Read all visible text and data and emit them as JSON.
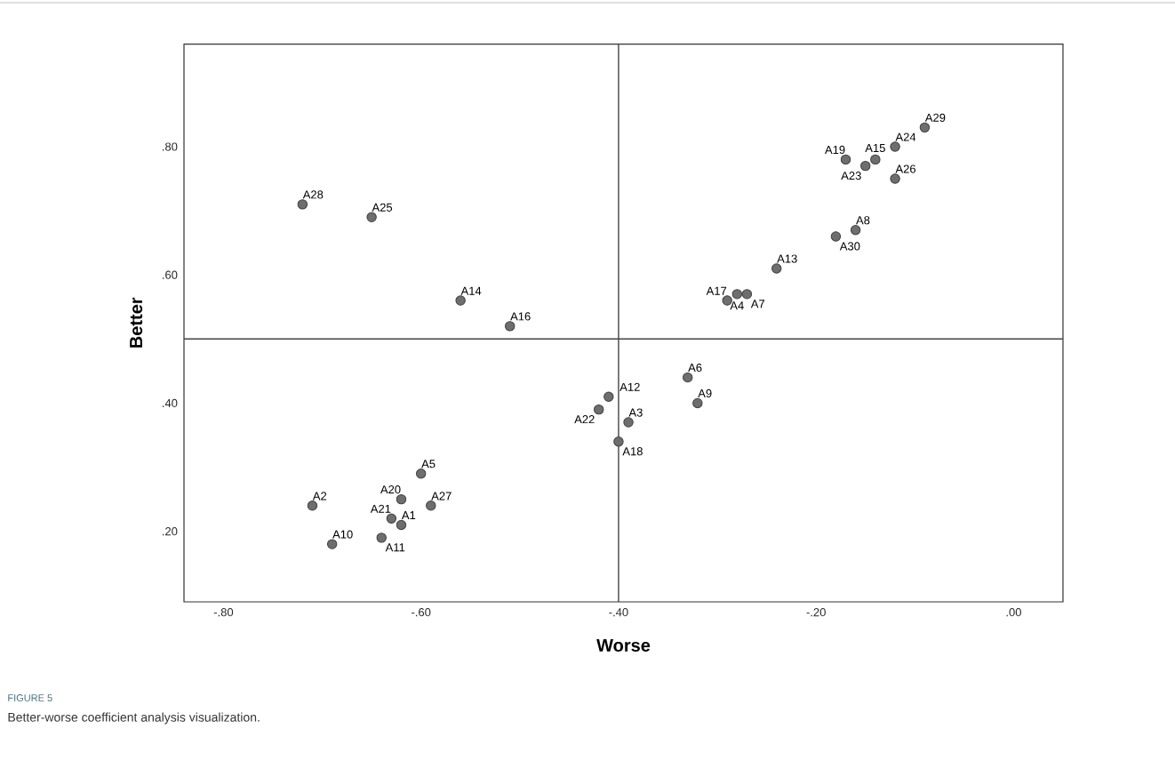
{
  "chart_data": {
    "type": "scatter",
    "xlabel": "Worse",
    "ylabel": "Better",
    "x": [
      -0.62,
      -0.71,
      -0.39,
      -0.28,
      -0.6,
      -0.33,
      -0.27,
      -0.16,
      -0.32,
      -0.69,
      -0.64,
      -0.41,
      -0.24,
      -0.56,
      -0.14,
      -0.51,
      -0.29,
      -0.4,
      -0.17,
      -0.62,
      -0.63,
      -0.42,
      -0.15,
      -0.12,
      -0.65,
      -0.12,
      -0.59,
      -0.72,
      -0.09,
      -0.18
    ],
    "series": [
      {
        "color": "#6e6e6e",
        "values": [
          0.21,
          0.24,
          0.37,
          0.57,
          0.29,
          0.44,
          0.57,
          0.67,
          0.4,
          0.18,
          0.19,
          0.41,
          0.61,
          0.56,
          0.78,
          0.52,
          0.56,
          0.34,
          0.78,
          0.25,
          0.22,
          0.39,
          0.77,
          0.8,
          0.69,
          0.75,
          0.24,
          0.71,
          0.83,
          0.66
        ]
      }
    ],
    "xlim": [
      -0.84,
      0.05
    ],
    "ylim": [
      0.09,
      0.96
    ],
    "xticks": [
      {
        "value": -0.8,
        "label": "-.80"
      },
      {
        "value": -0.6,
        "label": "-.60"
      },
      {
        "value": -0.4,
        "label": "-.40"
      },
      {
        "value": -0.2,
        "label": "-.20"
      },
      {
        "value": 0,
        "label": ".00"
      }
    ],
    "yticks": [
      {
        "value": 0.2,
        "label": ".20"
      },
      {
        "value": 0.4,
        "label": ".40"
      },
      {
        "value": 0.6,
        "label": ".60"
      },
      {
        "value": 0.8,
        "label": ".80"
      }
    ],
    "ref_lines": [
      {
        "axis": "x",
        "value": -0.4,
        "color": "#444444"
      },
      {
        "axis": "y",
        "value": 0.5,
        "color": "#444444"
      }
    ],
    "annotations": [
      {
        "text": "A1",
        "x": -0.62,
        "y": 0.21
      },
      {
        "text": "A2",
        "x": -0.71,
        "y": 0.24
      },
      {
        "text": "A3",
        "x": -0.39,
        "y": 0.37
      },
      {
        "text": "A4",
        "x": -0.28,
        "y": 0.57
      },
      {
        "text": "A5",
        "x": -0.6,
        "y": 0.29
      },
      {
        "text": "A6",
        "x": -0.33,
        "y": 0.44
      },
      {
        "text": "A7",
        "x": -0.27,
        "y": 0.57
      },
      {
        "text": "A8",
        "x": -0.16,
        "y": 0.67
      },
      {
        "text": "A9",
        "x": -0.32,
        "y": 0.4
      },
      {
        "text": "A10",
        "x": -0.69,
        "y": 0.18
      },
      {
        "text": "A11",
        "x": -0.64,
        "y": 0.19
      },
      {
        "text": "A12",
        "x": -0.41,
        "y": 0.41
      },
      {
        "text": "A13",
        "x": -0.24,
        "y": 0.61
      },
      {
        "text": "A14",
        "x": -0.56,
        "y": 0.56
      },
      {
        "text": "A15",
        "x": -0.14,
        "y": 0.78
      },
      {
        "text": "A16",
        "x": -0.51,
        "y": 0.52
      },
      {
        "text": "A17",
        "x": -0.29,
        "y": 0.56
      },
      {
        "text": "A18",
        "x": -0.4,
        "y": 0.34
      },
      {
        "text": "A19",
        "x": -0.17,
        "y": 0.78
      },
      {
        "text": "A20",
        "x": -0.62,
        "y": 0.25
      },
      {
        "text": "A21",
        "x": -0.63,
        "y": 0.22
      },
      {
        "text": "A22",
        "x": -0.42,
        "y": 0.39
      },
      {
        "text": "A23",
        "x": -0.15,
        "y": 0.77
      },
      {
        "text": "A24",
        "x": -0.12,
        "y": 0.8
      },
      {
        "text": "A25",
        "x": -0.65,
        "y": 0.69
      },
      {
        "text": "A26",
        "x": -0.12,
        "y": 0.75
      },
      {
        "text": "A27",
        "x": -0.59,
        "y": 0.24
      },
      {
        "text": "A28",
        "x": -0.72,
        "y": 0.71
      },
      {
        "text": "A29",
        "x": -0.09,
        "y": 0.83
      },
      {
        "text": "A30",
        "x": -0.18,
        "y": 0.66
      },
      "FIGURE 5",
      "Better-worse coefficient analysis visualization."
    ]
  }
}
